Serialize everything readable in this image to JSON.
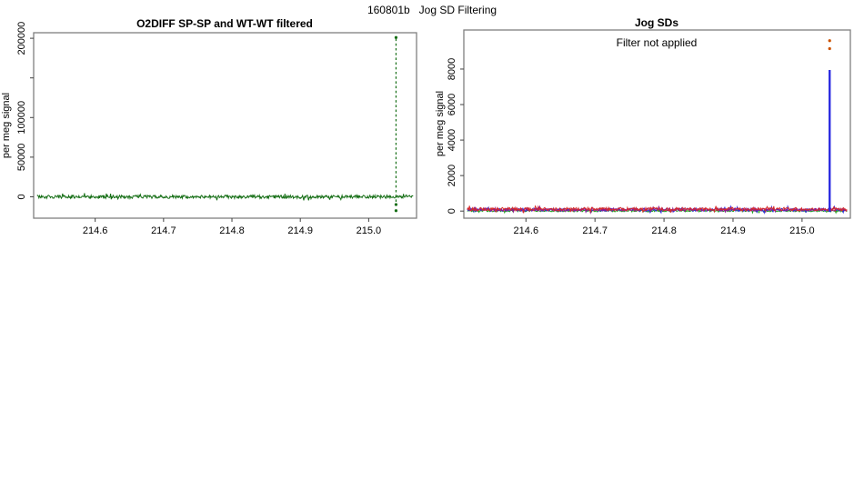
{
  "figure": {
    "main_title": "160801b   Jog SD Filtering",
    "background": "#ffffff",
    "axis_box_color": "#808080",
    "tick_color": "#404040",
    "text_color": "#000000"
  },
  "chart_data": [
    {
      "type": "line",
      "title": "O2DIFF SP-SP and WT-WT filtered",
      "xlabel": "",
      "ylabel": "per meg signal",
      "xlim": [
        214.51,
        215.07
      ],
      "ylim": [
        -27000,
        207000
      ],
      "xticks": [
        214.6,
        214.7,
        214.8,
        214.9,
        215.0
      ],
      "xtick_labels": [
        "214.6",
        "214.7",
        "214.8",
        "214.9",
        "215.0"
      ],
      "yticks": [
        0,
        50000,
        100000,
        150000,
        200000
      ],
      "ytick_labels": [
        "0",
        "50000",
        "100000",
        "",
        "200000"
      ],
      "grid": false,
      "legend": "none",
      "series": [
        {
          "name": "o2diff-sp-sp-wt-wt-filtered",
          "color": "#156e15",
          "x_start": 214.515,
          "x_end": 215.065,
          "baseline": 0,
          "noise_amp": 2000,
          "points": 620,
          "description": "dense noisy trace fluctuating around 0 per meg across full x range"
        }
      ],
      "spike": {
        "x": 215.04,
        "y_bottom": -6300,
        "y_top": 201000,
        "color": "#156e15",
        "style": "dashed"
      },
      "extra_points": {
        "color": "#156e15",
        "points": [
          {
            "x": 215.04,
            "y": 201000
          },
          {
            "x": 215.04,
            "y": -9800
          },
          {
            "x": 215.04,
            "y": -17500
          }
        ]
      }
    },
    {
      "type": "line",
      "title": "Jog SDs",
      "annotation": "Filter not applied",
      "xlabel": "",
      "ylabel": "per meg signal",
      "xlim": [
        214.51,
        215.07
      ],
      "ylim": [
        -400,
        10200
      ],
      "xticks": [
        214.6,
        214.7,
        214.8,
        214.9,
        215.0
      ],
      "xtick_labels": [
        "214.6",
        "214.7",
        "214.8",
        "214.9",
        "215.0"
      ],
      "yticks": [
        0,
        2000,
        4000,
        6000,
        8000
      ],
      "ytick_labels": [
        "0",
        "2000",
        "4000",
        "6000",
        "8000"
      ],
      "grid": false,
      "legend": "none",
      "series": [
        {
          "name": "jog-sd-green",
          "color": "#1fa21f",
          "x_start": 214.515,
          "x_end": 215.065,
          "baseline": 15,
          "noise_amp": 55,
          "points": 520,
          "description": "green SD trace hugging 0"
        },
        {
          "name": "jog-sd-blue",
          "color": "#2b2be0",
          "x_start": 214.515,
          "x_end": 215.065,
          "baseline": 75,
          "noise_amp": 85,
          "points": 520,
          "description": "blue SD trace near 0 with spike at 215.04"
        },
        {
          "name": "jog-sd-purple",
          "color": "#8f198f",
          "x_start": 214.515,
          "x_end": 215.065,
          "baseline": 85,
          "noise_amp": 75,
          "points": 520,
          "description": "purple SD trace near 0"
        },
        {
          "name": "jog-sd-red",
          "color": "#d62a2a",
          "x_start": 214.515,
          "x_end": 215.065,
          "baseline": 110,
          "noise_amp": 95,
          "points": 520,
          "description": "red SD trace near 0 with small bumps to ~300"
        }
      ],
      "spike": {
        "x": 215.04,
        "y_bottom": -50,
        "y_top": 7950,
        "color": "#2b2be0",
        "style": "solid"
      },
      "extra_points": {
        "color": "#cc5200",
        "points": [
          {
            "x": 215.04,
            "y": 9600
          },
          {
            "x": 215.04,
            "y": 9150
          }
        ]
      }
    }
  ]
}
